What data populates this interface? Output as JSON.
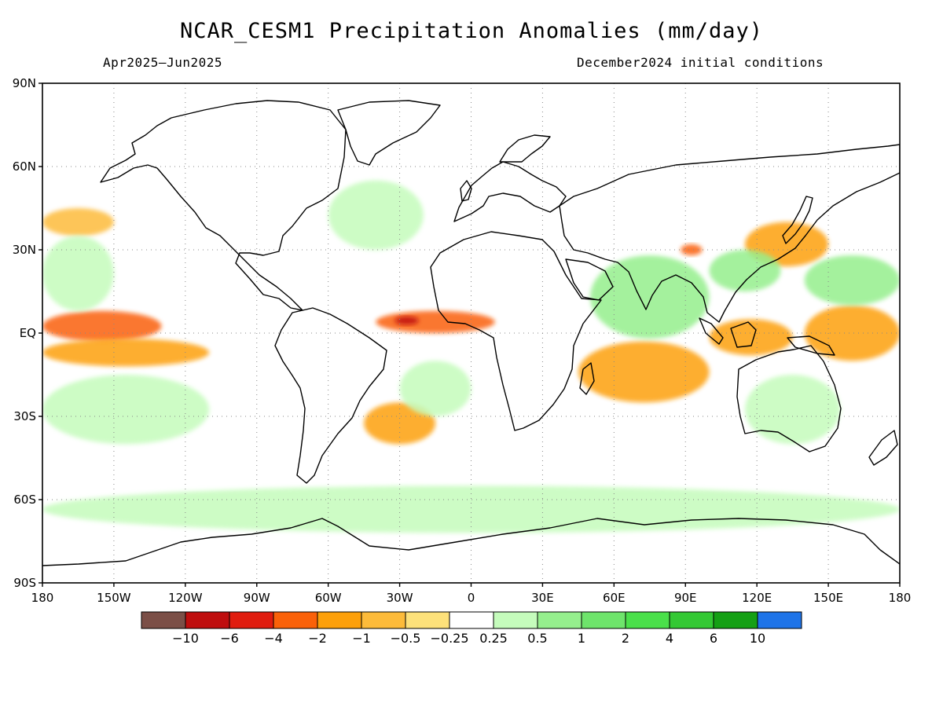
{
  "title": "NCAR_CESM1 Precipitation Anomalies (mm/day)",
  "subtitle_left": "Apr2025–Jun2025",
  "subtitle_right": "December2024 initial conditions",
  "chart_data": {
    "type": "heatmap",
    "projection": "equirectangular",
    "lon_range": [
      -180,
      180
    ],
    "lat_range": [
      -90,
      90
    ],
    "grid": true,
    "units": "mm/day",
    "y_ticks": [
      {
        "lat": 90,
        "label": "90N"
      },
      {
        "lat": 60,
        "label": "60N"
      },
      {
        "lat": 30,
        "label": "30N"
      },
      {
        "lat": 0,
        "label": "EQ"
      },
      {
        "lat": -30,
        "label": "30S"
      },
      {
        "lat": -60,
        "label": "60S"
      },
      {
        "lat": -90,
        "label": "90S"
      }
    ],
    "x_ticks": [
      {
        "lon": -180,
        "label": "180"
      },
      {
        "lon": -150,
        "label": "150W"
      },
      {
        "lon": -120,
        "label": "120W"
      },
      {
        "lon": -90,
        "label": "90W"
      },
      {
        "lon": -60,
        "label": "60W"
      },
      {
        "lon": -30,
        "label": "30W"
      },
      {
        "lon": 0,
        "label": "0"
      },
      {
        "lon": 30,
        "label": "30E"
      },
      {
        "lon": 60,
        "label": "60E"
      },
      {
        "lon": 90,
        "label": "90E"
      },
      {
        "lon": 120,
        "label": "120E"
      },
      {
        "lon": 150,
        "label": "150E"
      },
      {
        "lon": 180,
        "label": "180"
      }
    ],
    "colorbar": {
      "colors": [
        "#7b4f47",
        "#bf0e0e",
        "#e01c0e",
        "#fa6109",
        "#fda00a",
        "#fdbb3a",
        "#fde17a",
        "#ffffff",
        "#c5fcbc",
        "#95ef8d",
        "#6ee46b",
        "#4ae04a",
        "#34c934",
        "#15a015",
        "#1f74e8"
      ],
      "boundaries": [
        {
          "value": -10,
          "label": "−10"
        },
        {
          "value": -6,
          "label": "−6"
        },
        {
          "value": -4,
          "label": "−4"
        },
        {
          "value": -2,
          "label": "−2"
        },
        {
          "value": -1,
          "label": "−1"
        },
        {
          "value": -0.5,
          "label": "−0.5"
        },
        {
          "value": -0.25,
          "label": "−0.25"
        },
        {
          "value": 0.25,
          "label": "0.25"
        },
        {
          "value": 0.5,
          "label": "0.5"
        },
        {
          "value": 1,
          "label": "1"
        },
        {
          "value": 2,
          "label": "2"
        },
        {
          "value": 4,
          "label": "4"
        },
        {
          "value": 6,
          "label": "6"
        },
        {
          "value": 10,
          "label": "10"
        }
      ]
    },
    "anomaly_regions": [
      {
        "name": "central-pacific-equatorial-dry",
        "lon": [
          -180,
          -130
        ],
        "lat": [
          -3,
          8
        ],
        "value": -3
      },
      {
        "name": "pacific-south-of-equator-dry",
        "lon": [
          -180,
          -110
        ],
        "lat": [
          -12,
          -2
        ],
        "value": -1.5
      },
      {
        "name": "tropical-atlantic-dry",
        "lon": [
          -40,
          10
        ],
        "lat": [
          0,
          8
        ],
        "value": -2
      },
      {
        "name": "gulf-of-guinea-strong-dry",
        "lon": [
          -32,
          -22
        ],
        "lat": [
          3,
          6
        ],
        "value": -6
      },
      {
        "name": "south-indian-ocean-dry",
        "lon": [
          45,
          100
        ],
        "lat": [
          -25,
          -3
        ],
        "value": -1.5
      },
      {
        "name": "maritime-continent-dry",
        "lon": [
          100,
          135
        ],
        "lat": [
          -8,
          5
        ],
        "value": -1.5
      },
      {
        "name": "western-pacific-equatorial-dry",
        "lon": [
          140,
          180
        ],
        "lat": [
          -10,
          10
        ],
        "value": -1.5
      },
      {
        "name": "japan-east-china-dry",
        "lon": [
          115,
          150
        ],
        "lat": [
          24,
          40
        ],
        "value": -1.5
      },
      {
        "name": "tibet-dry",
        "lon": [
          88,
          97
        ],
        "lat": [
          28,
          32
        ],
        "value": -3
      },
      {
        "name": "south-atlantic-dry",
        "lon": [
          -45,
          -15
        ],
        "lat": [
          -40,
          -25
        ],
        "value": -1
      },
      {
        "name": "north-pacific-dry",
        "lon": [
          -180,
          -150
        ],
        "lat": [
          35,
          45
        ],
        "value": -0.5
      },
      {
        "name": "northwest-pacific-wet",
        "lon": [
          140,
          180
        ],
        "lat": [
          10,
          28
        ],
        "value": 1
      },
      {
        "name": "north-indian-ocean-wet",
        "lon": [
          50,
          100
        ],
        "lat": [
          -2,
          28
        ],
        "value": 1
      },
      {
        "name": "subtropical-north-pacific-wet",
        "lon": [
          -180,
          -150
        ],
        "lat": [
          8,
          35
        ],
        "value": 0.5
      },
      {
        "name": "south-pacific-wet",
        "lon": [
          -180,
          -110
        ],
        "lat": [
          -40,
          -15
        ],
        "value": 0.5
      },
      {
        "name": "australia-wet",
        "lon": [
          115,
          155
        ],
        "lat": [
          -40,
          -15
        ],
        "value": 0.5
      },
      {
        "name": "south-atlantic-diagonal-wet",
        "lon": [
          -30,
          0
        ],
        "lat": [
          -30,
          -10
        ],
        "value": 0.5
      },
      {
        "name": "southern-ocean-wet",
        "lon": [
          -180,
          180
        ],
        "lat": [
          -72,
          -55
        ],
        "value": 0.5
      },
      {
        "name": "north-atlantic-wet",
        "lon": [
          -60,
          -20
        ],
        "lat": [
          30,
          55
        ],
        "value": 0.5
      },
      {
        "name": "east-asia-wet",
        "lon": [
          100,
          130
        ],
        "lat": [
          15,
          30
        ],
        "value": 1
      }
    ]
  }
}
